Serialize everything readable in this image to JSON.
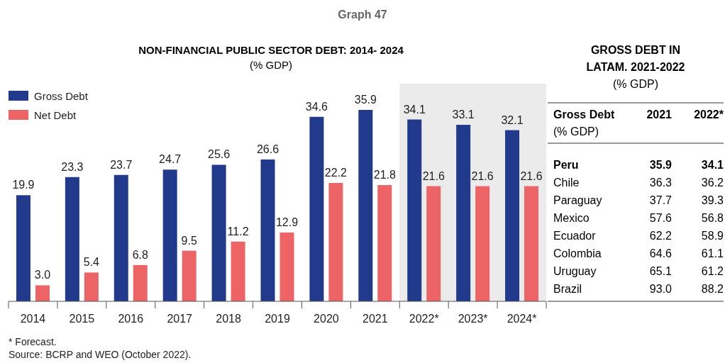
{
  "chart_data": [
    {
      "type": "bar",
      "title": "NON-FINANCIAL PUBLIC SECTOR DEBT: 2014- 2024",
      "subtitle": "(% GDP)",
      "categories": [
        "2014",
        "2015",
        "2016",
        "2017",
        "2018",
        "2019",
        "2020",
        "2021",
        "2022*",
        "2023*",
        "2024*"
      ],
      "series": [
        {
          "name": "Gross Debt",
          "color": "#213a8c",
          "values": [
            19.9,
            23.3,
            23.7,
            24.7,
            25.6,
            26.6,
            34.6,
            35.9,
            34.1,
            33.1,
            32.1
          ],
          "value_labels": [
            "19.9",
            "23.3",
            "23.7",
            "24.7",
            "25.6",
            "26.6",
            "34.6",
            "35.9",
            "34.1",
            "33.1",
            "32.1"
          ]
        },
        {
          "name": "Net Debt",
          "color": "#ec6466",
          "values": [
            3.0,
            5.4,
            6.8,
            9.5,
            11.2,
            12.9,
            22.2,
            21.8,
            21.6,
            21.6,
            21.6
          ],
          "value_labels": [
            "3.0",
            "5.4",
            "6.8",
            "9.5",
            "11.2",
            "12.9",
            "22.2",
            "21.8",
            "21.6",
            "21.6",
            "21.6"
          ]
        }
      ],
      "legend": "top left",
      "bands": [
        {
          "axis": "x",
          "from": "2022*",
          "to": "2024*",
          "color": "#ebebeb"
        }
      ],
      "annotations": [
        "Graph 47",
        "* Forecast.",
        "Source: BCRP and WEO (October 2022)."
      ]
    },
    {
      "type": "other",
      "title": "GROSS DEBT IN LATAM. 2021-2022",
      "subtitle": "(% GDP)",
      "ylabel": "Gross Debt (% GDP)",
      "categories": [
        "Peru",
        "Chile",
        "Paraguay",
        "Mexico",
        "Ecuador",
        "Colombia",
        "Uruguay",
        "Brazil"
      ],
      "series": [
        {
          "name": "2021",
          "values": [
            35.9,
            36.3,
            37.7,
            57.6,
            62.2,
            64.6,
            65.1,
            93.0
          ],
          "value_labels": [
            "35.9",
            "36.3",
            "37.7",
            "57.6",
            "62.2",
            "64.6",
            "65.1",
            "93.0"
          ]
        },
        {
          "name": "2022*",
          "values": [
            34.1,
            36.2,
            39.3,
            56.8,
            58.9,
            61.1,
            61.2,
            88.2
          ],
          "value_labels": [
            "34.1",
            "36.2",
            "39.3",
            "56.8",
            "58.9",
            "61.1",
            "61.2",
            "88.2"
          ]
        }
      ]
    }
  ]
}
